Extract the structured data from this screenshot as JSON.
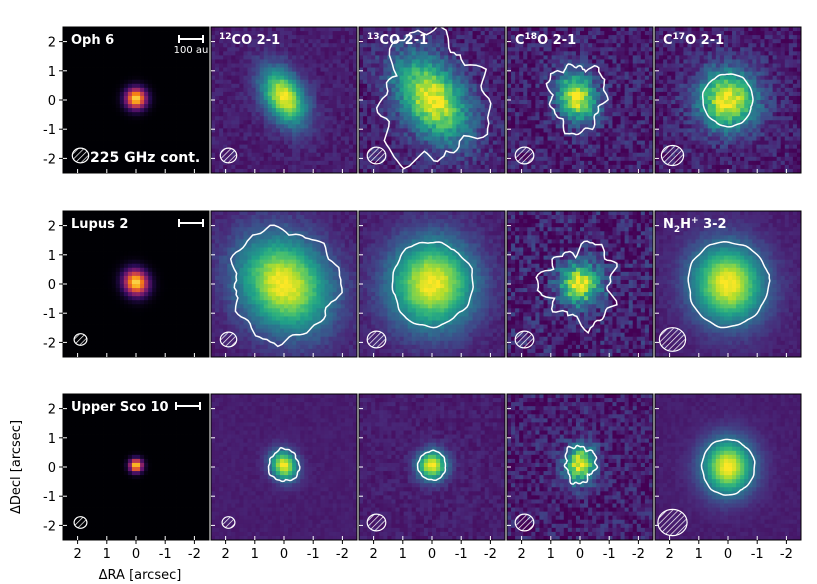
{
  "chart_data": {
    "type": "heatmap",
    "title": "",
    "xlabel": "ΔRA [arcsec]",
    "ylabel": "ΔDecl [arcsec]",
    "xlim": [
      2.5,
      -2.5
    ],
    "ylim": [
      -2.5,
      2.5
    ],
    "x_ticks": [
      {
        "value": 2,
        "label": "2"
      },
      {
        "value": 1,
        "label": "1"
      },
      {
        "value": 0,
        "label": "0"
      },
      {
        "value": -1,
        "label": "-1"
      },
      {
        "value": -2,
        "label": "-2"
      }
    ],
    "y_ticks": [
      {
        "value": 2,
        "label": "2"
      },
      {
        "value": 1,
        "label": "1"
      },
      {
        "value": 0,
        "label": "0"
      },
      {
        "value": -1,
        "label": "-1"
      },
      {
        "value": -2,
        "label": "-2"
      }
    ],
    "scale_bar_label": "100 au",
    "continuum_label": "225 GHz cont.",
    "colormaps": {
      "continuum": "magma",
      "lines": "viridis"
    },
    "contour_color": "#ffffff",
    "rows": [
      {
        "name": "Oph 6",
        "panels": [
          {
            "label_base": "",
            "label_sup": "",
            "label_rest": "",
            "kind": "continuum",
            "peak": [
              0.0,
              0.05
            ],
            "size": 0.22,
            "elong": 1.0,
            "angle": 0,
            "noise": 0.0,
            "contour_radius": 0,
            "contour_noise": 0,
            "beam": 0.28
          },
          {
            "label_base": "",
            "label_sup": "12",
            "label_rest": "CO 2-1",
            "kind": "line",
            "peak": [
              0.0,
              0.1
            ],
            "size": 0.45,
            "elong": 1.6,
            "angle": -30,
            "noise": 0.05,
            "contour_radius": 0,
            "contour_noise": 0,
            "beam": 0.28
          },
          {
            "label_base": "",
            "label_sup": "13",
            "label_rest": "CO 2-1",
            "kind": "line",
            "peak": [
              0.0,
              0.05
            ],
            "size": 0.7,
            "elong": 1.6,
            "angle": -35,
            "noise": 0.1,
            "contour_radius": 1.9,
            "contour_noise": 0.35,
            "beam": 0.32
          },
          {
            "label_base": "C",
            "label_sup": "18",
            "label_rest": "O 2-1",
            "kind": "line",
            "peak": [
              0.1,
              0.1
            ],
            "size": 0.45,
            "elong": 1.3,
            "angle": -20,
            "noise": 0.12,
            "contour_radius": 1.0,
            "contour_noise": 0.3,
            "beam": 0.32
          },
          {
            "label_base": "C",
            "label_sup": "17",
            "label_rest": "O 2-1",
            "kind": "line",
            "peak": [
              0.0,
              0.0
            ],
            "size": 0.7,
            "elong": 1.0,
            "angle": 0,
            "noise": 0.1,
            "contour_radius": 0.9,
            "contour_noise": 0.05,
            "beam": 0.38
          }
        ]
      },
      {
        "name": "Lupus 2",
        "panels": [
          {
            "label_base": "",
            "label_sup": "",
            "label_rest": "",
            "kind": "continuum",
            "peak": [
              0.0,
              0.05
            ],
            "size": 0.25,
            "elong": 1.1,
            "angle": -30,
            "noise": 0.0,
            "contour_radius": 0,
            "contour_noise": 0,
            "beam": 0.22
          },
          {
            "label_base": "",
            "label_sup": "",
            "label_rest": "",
            "kind": "line",
            "peak": [
              0.0,
              0.0
            ],
            "size": 1.0,
            "elong": 1.2,
            "angle": -40,
            "noise": 0.04,
            "contour_radius": 1.9,
            "contour_noise": 0.18,
            "beam": 0.28
          },
          {
            "label_base": "",
            "label_sup": "",
            "label_rest": "",
            "kind": "line",
            "peak": [
              0.0,
              0.0
            ],
            "size": 1.0,
            "elong": 1.05,
            "angle": 0,
            "noise": 0.04,
            "contour_radius": 1.45,
            "contour_noise": 0.08,
            "beam": 0.32
          },
          {
            "label_base": "",
            "label_sup": "",
            "label_rest": "",
            "kind": "line",
            "peak": [
              0.0,
              0.0
            ],
            "size": 0.5,
            "elong": 1.0,
            "angle": 0,
            "noise": 0.15,
            "contour_radius": 1.3,
            "contour_noise": 0.4,
            "beam": 0.32
          },
          {
            "label_base": "N",
            "label_sub": "2",
            "label_mid": "H",
            "label_sup": "+",
            "label_rest": " 3-2",
            "kind": "line",
            "peak": [
              0.0,
              0.0
            ],
            "size": 0.85,
            "elong": 1.1,
            "angle": -15,
            "noise": 0.03,
            "contour_radius": 1.45,
            "contour_noise": 0.06,
            "beam": 0.45
          }
        ]
      },
      {
        "name": "Upper Sco 10",
        "panels": [
          {
            "label_base": "",
            "label_sup": "",
            "label_rest": "",
            "kind": "continuum",
            "peak": [
              0.0,
              0.05
            ],
            "size": 0.14,
            "elong": 1.0,
            "angle": 0,
            "noise": 0.0,
            "contour_radius": 0,
            "contour_noise": 0,
            "beam": 0.22
          },
          {
            "label_base": "",
            "label_sup": "",
            "label_rest": "",
            "kind": "line",
            "peak": [
              0.0,
              0.05
            ],
            "size": 0.3,
            "elong": 1.2,
            "angle": -30,
            "noise": 0.02,
            "contour_radius": 0.55,
            "contour_noise": 0.15,
            "beam": 0.22
          },
          {
            "label_base": "",
            "label_sup": "",
            "label_rest": "",
            "kind": "line",
            "peak": [
              0.0,
              0.05
            ],
            "size": 0.35,
            "elong": 1.0,
            "angle": 0,
            "noise": 0.04,
            "contour_radius": 0.5,
            "contour_noise": 0.08,
            "beam": 0.32
          },
          {
            "label_base": "",
            "label_sup": "",
            "label_rest": "",
            "kind": "line",
            "peak": [
              0.0,
              0.1
            ],
            "size": 0.35,
            "elong": 1.3,
            "angle": 10,
            "noise": 0.12,
            "contour_radius": 0.55,
            "contour_noise": 0.3,
            "beam": 0.32
          },
          {
            "label_base": "",
            "label_sup": "",
            "label_rest": "",
            "kind": "line",
            "peak": [
              0.0,
              0.0
            ],
            "size": 0.6,
            "elong": 1.1,
            "angle": 0,
            "noise": 0.02,
            "contour_radius": 0.95,
            "contour_noise": 0.05,
            "beam": 0.5
          }
        ]
      }
    ]
  }
}
